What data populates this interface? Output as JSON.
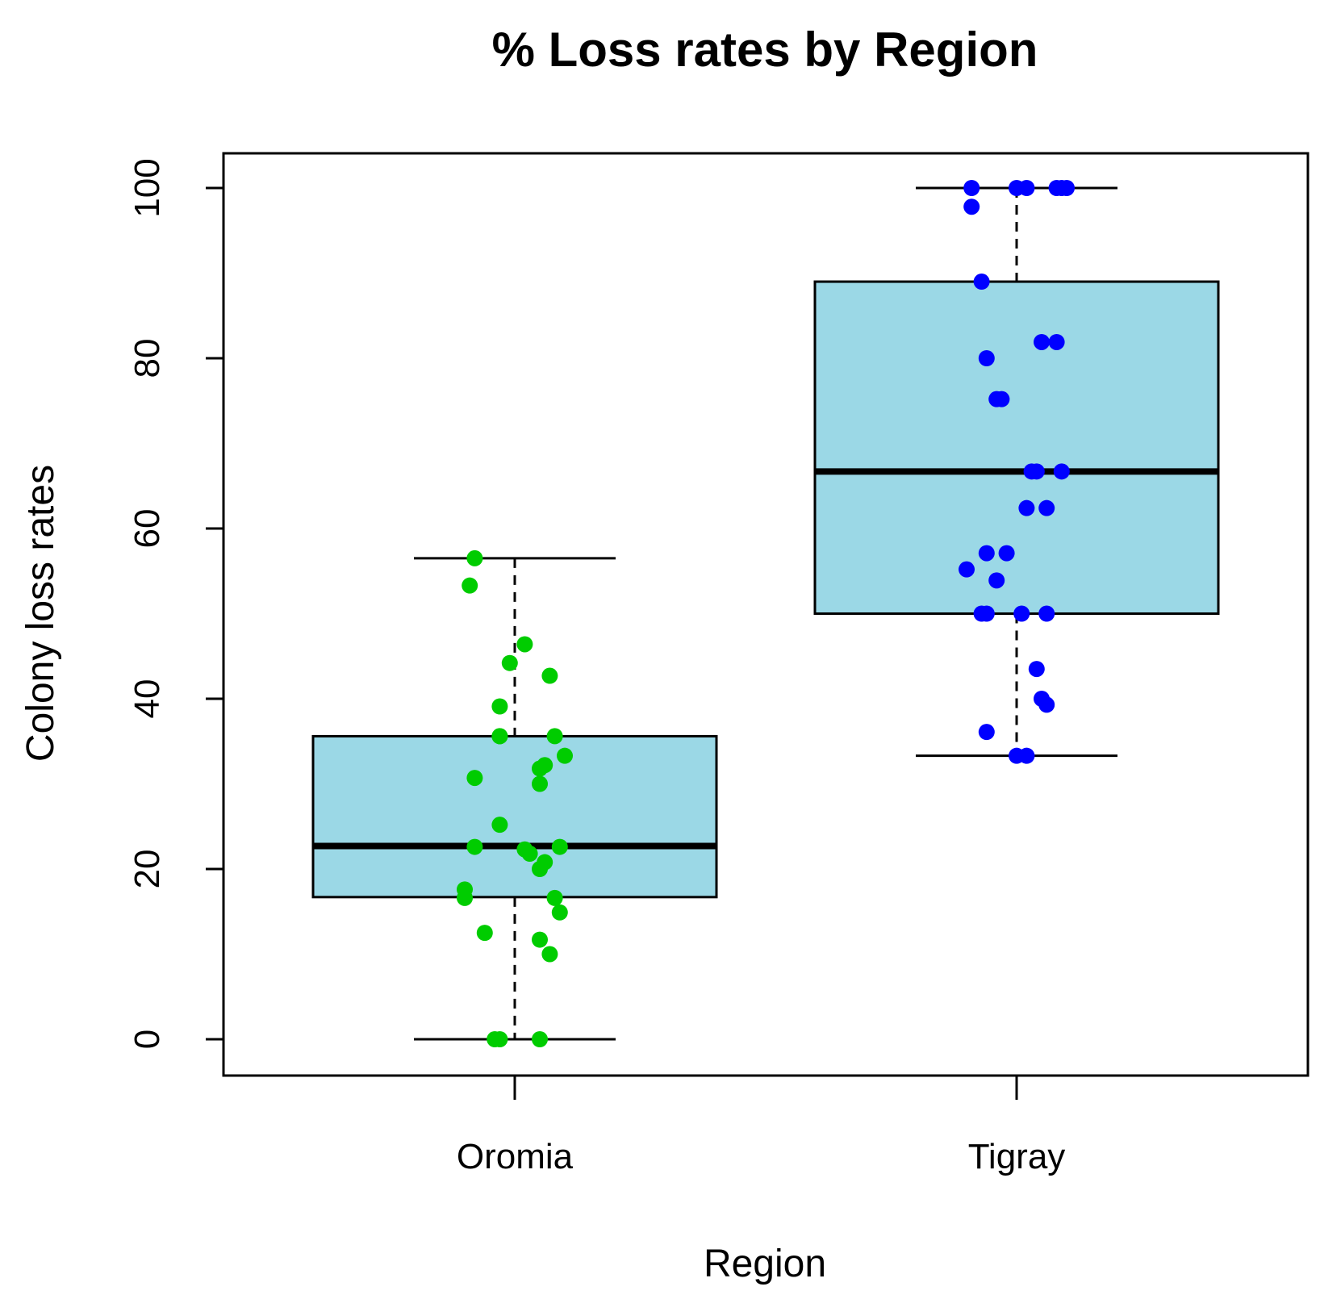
{
  "chart_data": {
    "type": "box",
    "title": "% Loss rates by Region",
    "xlabel": "Region",
    "ylabel": "Colony loss rates",
    "ylim": [
      -4.2,
      104.2
    ],
    "yticks": [
      "0",
      "20",
      "40",
      "60",
      "80",
      "100"
    ],
    "categories": [
      "Oromia",
      "Tigray"
    ],
    "box_fill": "#9bd8e6",
    "boxes": [
      {
        "name": "Oromia",
        "whisker_low": 0,
        "q1": 16.7,
        "median": 22.7,
        "q3": 35.6,
        "whisker_high": 56.5,
        "point_color": "#00cc00",
        "points": [
          {
            "x": -0.08,
            "y": 56.5
          },
          {
            "x": -0.09,
            "y": 53.3
          },
          {
            "x": 0.02,
            "y": 46.4
          },
          {
            "x": -0.01,
            "y": 44.2
          },
          {
            "x": 0.07,
            "y": 42.7
          },
          {
            "x": -0.03,
            "y": 39.1
          },
          {
            "x": -0.03,
            "y": 35.6
          },
          {
            "x": -0.03,
            "y": 35.6
          },
          {
            "x": 0.08,
            "y": 35.6
          },
          {
            "x": 0.1,
            "y": 33.3
          },
          {
            "x": 0.06,
            "y": 32.2
          },
          {
            "x": 0.05,
            "y": 31.8
          },
          {
            "x": -0.08,
            "y": 30.7
          },
          {
            "x": 0.05,
            "y": 30.0
          },
          {
            "x": -0.03,
            "y": 25.2
          },
          {
            "x": -0.08,
            "y": 22.6
          },
          {
            "x": 0.09,
            "y": 22.6
          },
          {
            "x": 0.02,
            "y": 22.3
          },
          {
            "x": 0.03,
            "y": 21.8
          },
          {
            "x": 0.06,
            "y": 20.8
          },
          {
            "x": 0.05,
            "y": 20.0
          },
          {
            "x": -0.1,
            "y": 17.6
          },
          {
            "x": -0.1,
            "y": 16.6
          },
          {
            "x": 0.08,
            "y": 16.6
          },
          {
            "x": 0.09,
            "y": 14.9
          },
          {
            "x": -0.06,
            "y": 12.5
          },
          {
            "x": 0.05,
            "y": 11.7
          },
          {
            "x": 0.07,
            "y": 10.0
          },
          {
            "x": -0.04,
            "y": 0
          },
          {
            "x": -0.03,
            "y": 0
          },
          {
            "x": 0.05,
            "y": 0
          }
        ]
      },
      {
        "name": "Tigray",
        "whisker_low": 33.3,
        "q1": 50,
        "median": 66.7,
        "q3": 89,
        "whisker_high": 100,
        "point_color": "#0000ff",
        "points": [
          {
            "x": -0.09,
            "y": 100
          },
          {
            "x": 0.0,
            "y": 100
          },
          {
            "x": 0.02,
            "y": 100
          },
          {
            "x": 0.08,
            "y": 100
          },
          {
            "x": 0.09,
            "y": 100
          },
          {
            "x": 0.1,
            "y": 100
          },
          {
            "x": -0.09,
            "y": 97.8
          },
          {
            "x": -0.07,
            "y": 89
          },
          {
            "x": 0.05,
            "y": 81.9
          },
          {
            "x": 0.08,
            "y": 81.9
          },
          {
            "x": -0.06,
            "y": 80
          },
          {
            "x": -0.04,
            "y": 75.2
          },
          {
            "x": -0.03,
            "y": 75.2
          },
          {
            "x": 0.03,
            "y": 66.7
          },
          {
            "x": 0.04,
            "y": 66.7
          },
          {
            "x": 0.09,
            "y": 66.7
          },
          {
            "x": 0.02,
            "y": 62.4
          },
          {
            "x": 0.06,
            "y": 62.4
          },
          {
            "x": -0.06,
            "y": 57.1
          },
          {
            "x": -0.02,
            "y": 57.1
          },
          {
            "x": -0.1,
            "y": 55.2
          },
          {
            "x": -0.04,
            "y": 53.9
          },
          {
            "x": -0.07,
            "y": 50
          },
          {
            "x": -0.06,
            "y": 50
          },
          {
            "x": 0.01,
            "y": 50
          },
          {
            "x": 0.06,
            "y": 50
          },
          {
            "x": 0.04,
            "y": 43.5
          },
          {
            "x": 0.05,
            "y": 40
          },
          {
            "x": 0.06,
            "y": 39.3
          },
          {
            "x": -0.06,
            "y": 36.1
          },
          {
            "x": 0.0,
            "y": 33.3
          },
          {
            "x": 0.02,
            "y": 33.3
          }
        ]
      }
    ]
  }
}
